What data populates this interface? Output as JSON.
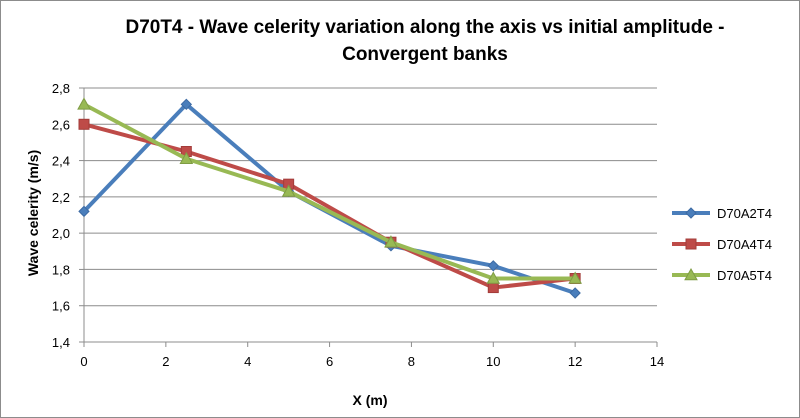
{
  "chart_data": {
    "type": "line",
    "title_line1": "D70T4 - Wave celerity variation along the axis vs initial amplitude -",
    "title_line2": "Convergent banks",
    "xlabel": "X (m)",
    "ylabel": "Wave celerity (m/s)",
    "xlim": [
      0,
      14
    ],
    "ylim": [
      1.4,
      2.8
    ],
    "x_ticks": [
      0,
      2,
      4,
      6,
      8,
      10,
      12,
      14
    ],
    "x_tick_labels": [
      "0",
      "2",
      "4",
      "6",
      "8",
      "10",
      "12",
      "14"
    ],
    "y_ticks": [
      1.4,
      1.6,
      1.8,
      2.0,
      2.2,
      2.4,
      2.6,
      2.8
    ],
    "y_tick_labels": [
      "1,4",
      "1,6",
      "1,8",
      "2,0",
      "2,2",
      "2,4",
      "2,6",
      "2,8"
    ],
    "grid": "horizontal",
    "legend_position": "right",
    "series": [
      {
        "name": "D70A2T4",
        "color": "#4a7ebb",
        "marker": "diamond",
        "x": [
          0,
          2.5,
          5,
          7.5,
          10,
          12
        ],
        "values": [
          2.12,
          2.71,
          2.23,
          1.93,
          1.82,
          1.67
        ]
      },
      {
        "name": "D70A4T4",
        "color": "#be4b48",
        "marker": "square",
        "x": [
          0,
          2.5,
          5,
          7.5,
          10,
          12
        ],
        "values": [
          2.6,
          2.45,
          2.27,
          1.95,
          1.7,
          1.75
        ]
      },
      {
        "name": "D70A5T4",
        "color": "#98b954",
        "marker": "triangle",
        "x": [
          0,
          2.5,
          5,
          7.5,
          10,
          12
        ],
        "values": [
          2.71,
          2.41,
          2.23,
          1.95,
          1.75,
          1.75
        ]
      }
    ]
  }
}
